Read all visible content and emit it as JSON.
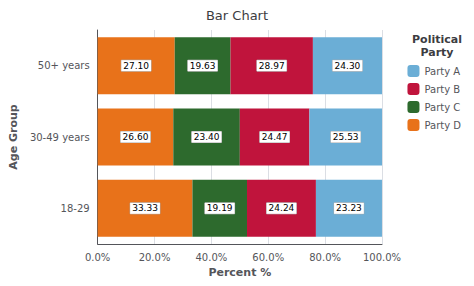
{
  "chart_data": {
    "type": "bar",
    "title": "Bar Chart",
    "xlabel": "Percent %",
    "ylabel": "Age Group",
    "categories": [
      "18-29",
      "30-49 years",
      "50+ years"
    ],
    "series": [
      {
        "name": "Party D",
        "color": "#E8721A",
        "values": [
          33.33,
          26.6,
          27.1
        ],
        "value_labels": [
          "33.33",
          "26.60",
          "27.10"
        ]
      },
      {
        "name": "Party C",
        "color": "#2D6A2D",
        "values": [
          19.19,
          23.4,
          19.63
        ],
        "value_labels": [
          "19.19",
          "23.40",
          "19.63"
        ]
      },
      {
        "name": "Party B",
        "color": "#C0143C",
        "values": [
          24.24,
          24.47,
          28.97
        ],
        "value_labels": [
          "24.24",
          "24.47",
          "28.97"
        ]
      },
      {
        "name": "Party A",
        "color": "#6BAED6",
        "values": [
          23.23,
          25.53,
          24.3
        ],
        "value_labels": [
          "23.23",
          "25.53",
          "24.30"
        ]
      }
    ],
    "legend_title": "Political\nParty",
    "legend_order": [
      "Party A",
      "Party B",
      "Party C",
      "Party D"
    ],
    "xlim": [
      0,
      100
    ],
    "xticks": [
      {
        "value": 0,
        "label": "0.0%"
      },
      {
        "value": 20,
        "label": "20.0%"
      },
      {
        "value": 40,
        "label": "40.0%"
      },
      {
        "value": 60,
        "label": "60.0%"
      },
      {
        "value": 80,
        "label": "80.0%"
      },
      {
        "value": 100,
        "label": "100.0%"
      }
    ],
    "orientation": "horizontal",
    "stacked": true,
    "data_labels": true,
    "grid": true,
    "legend": "upper right"
  }
}
